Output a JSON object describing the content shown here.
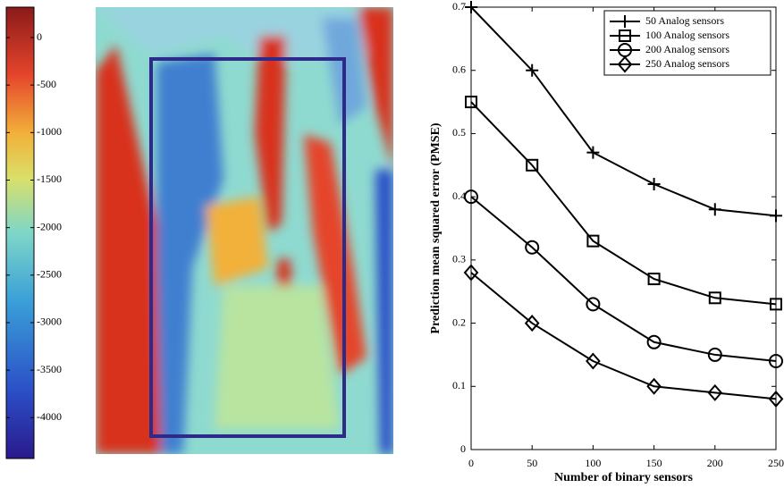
{
  "chart_data": [
    {
      "type": "colorbar",
      "ylim": [
        -4430,
        320
      ],
      "yticks": [
        0,
        -500,
        -1000,
        -1500,
        -2000,
        -2500,
        -3000,
        -3500,
        -4000
      ]
    },
    {
      "type": "line",
      "xlabel": "Number of binary sensors",
      "ylabel": "Prediction mean squared error (PMSE)",
      "x": [
        0,
        50,
        100,
        150,
        200,
        250
      ],
      "xlim": [
        0,
        250
      ],
      "xticks": [
        0,
        50,
        100,
        150,
        200,
        250
      ],
      "ylim": [
        0,
        0.7
      ],
      "yticks": [
        0,
        0.1,
        0.2,
        0.3,
        0.4,
        0.5,
        0.6,
        0.7
      ],
      "legend": "upper-right",
      "series": [
        {
          "name": "50 Analog sensors",
          "color": "#000000",
          "marker": "plus",
          "values": [
            0.7,
            0.6,
            0.47,
            0.42,
            0.38,
            0.37
          ]
        },
        {
          "name": "100 Analog sensors",
          "color": "#000000",
          "marker": "square",
          "values": [
            0.55,
            0.45,
            0.33,
            0.27,
            0.24,
            0.23
          ]
        },
        {
          "name": "200 Analog sensors",
          "color": "#000000",
          "marker": "circle",
          "values": [
            0.4,
            0.32,
            0.23,
            0.17,
            0.15,
            0.14
          ]
        },
        {
          "name": "250 Analog sensors",
          "color": "#000000",
          "marker": "diamond",
          "values": [
            0.28,
            0.2,
            0.14,
            0.1,
            0.09,
            0.08
          ]
        }
      ]
    }
  ]
}
